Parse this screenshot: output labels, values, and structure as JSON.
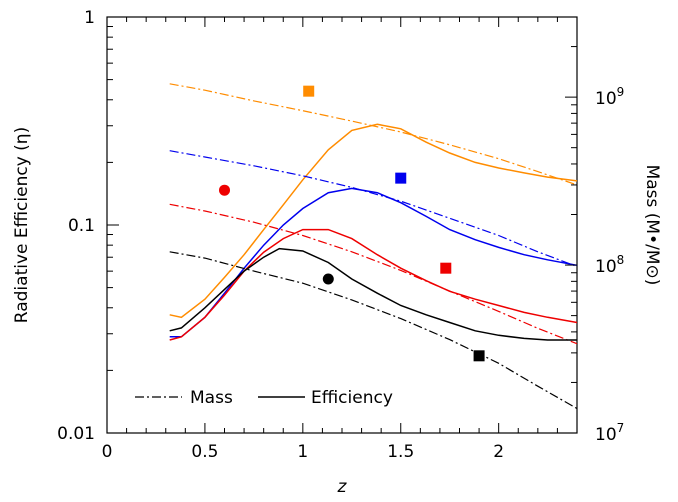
{
  "chart_data": {
    "type": "line",
    "xlabel": "z",
    "ylabel_left": "Radiative Efficiency (η)",
    "ylabel_right": "Mass (M•/M⊙)",
    "xlim": [
      0,
      2.4
    ],
    "ylim_left": [
      0.01,
      1
    ],
    "ylim_right": [
      10000000,
      3000000000
    ],
    "y_scale": "log",
    "x_ticks": [
      {
        "v": 0,
        "label": "0"
      },
      {
        "v": 0.5,
        "label": "0.5"
      },
      {
        "v": 1,
        "label": "1"
      },
      {
        "v": 1.5,
        "label": "1.5"
      },
      {
        "v": 2,
        "label": "2"
      }
    ],
    "y_left_ticks": [
      {
        "v": 0.01,
        "label": "0.01"
      },
      {
        "v": 0.1,
        "label": "0.1"
      },
      {
        "v": 1,
        "label": "1"
      }
    ],
    "y_right_ticks": [
      {
        "v": 10000000,
        "base": "10",
        "exp": "7"
      },
      {
        "v": 100000000,
        "base": "10",
        "exp": "8"
      },
      {
        "v": 1000000000,
        "base": "10",
        "exp": "9"
      }
    ],
    "legend": {
      "position": "bottom-left",
      "entries": [
        {
          "label": "Mass",
          "style": "dashdot"
        },
        {
          "label": "Efficiency",
          "style": "solid"
        }
      ]
    },
    "series": [
      {
        "color": "#ff8c00",
        "efficiency": [
          [
            0.32,
            0.037
          ],
          [
            0.38,
            0.036
          ],
          [
            0.5,
            0.044
          ],
          [
            0.6,
            0.056
          ],
          [
            0.7,
            0.072
          ],
          [
            0.8,
            0.095
          ],
          [
            0.9,
            0.125
          ],
          [
            1.0,
            0.165
          ],
          [
            1.13,
            0.23
          ],
          [
            1.25,
            0.285
          ],
          [
            1.38,
            0.305
          ],
          [
            1.5,
            0.29
          ],
          [
            1.63,
            0.25
          ],
          [
            1.75,
            0.222
          ],
          [
            1.88,
            0.2
          ],
          [
            2.0,
            0.188
          ],
          [
            2.13,
            0.178
          ],
          [
            2.25,
            0.17
          ],
          [
            2.4,
            0.163
          ]
        ],
        "mass": [
          [
            0.32,
            1200000000
          ],
          [
            0.5,
            1100000000
          ],
          [
            0.75,
            950000000
          ],
          [
            1.0,
            830000000
          ],
          [
            1.25,
            720000000
          ],
          [
            1.5,
            620000000
          ],
          [
            1.75,
            520000000
          ],
          [
            2.0,
            430000000
          ],
          [
            2.2,
            360000000
          ],
          [
            2.4,
            300000000
          ]
        ],
        "marker": {
          "shape": "square",
          "x": 1.03,
          "y_eff": 0.44
        }
      },
      {
        "color": "#0000ee",
        "efficiency": [
          [
            0.32,
            0.029
          ],
          [
            0.38,
            0.029
          ],
          [
            0.5,
            0.036
          ],
          [
            0.6,
            0.047
          ],
          [
            0.7,
            0.062
          ],
          [
            0.8,
            0.08
          ],
          [
            0.9,
            0.1
          ],
          [
            1.0,
            0.12
          ],
          [
            1.13,
            0.143
          ],
          [
            1.25,
            0.15
          ],
          [
            1.38,
            0.143
          ],
          [
            1.5,
            0.128
          ],
          [
            1.63,
            0.11
          ],
          [
            1.75,
            0.095
          ],
          [
            1.88,
            0.085
          ],
          [
            2.0,
            0.078
          ],
          [
            2.13,
            0.072
          ],
          [
            2.25,
            0.068
          ],
          [
            2.4,
            0.064
          ]
        ],
        "mass": [
          [
            0.32,
            480000000
          ],
          [
            0.5,
            440000000
          ],
          [
            0.75,
            390000000
          ],
          [
            1.0,
            340000000
          ],
          [
            1.25,
            290000000
          ],
          [
            1.5,
            240000000
          ],
          [
            1.75,
            190000000
          ],
          [
            2.0,
            150000000
          ],
          [
            2.2,
            120000000
          ],
          [
            2.4,
            98000000
          ]
        ],
        "marker": {
          "shape": "square",
          "x": 1.5,
          "y_eff": 0.168
        }
      },
      {
        "color": "#ee0000",
        "efficiency": [
          [
            0.32,
            0.028
          ],
          [
            0.38,
            0.029
          ],
          [
            0.5,
            0.036
          ],
          [
            0.6,
            0.046
          ],
          [
            0.7,
            0.06
          ],
          [
            0.8,
            0.074
          ],
          [
            0.9,
            0.086
          ],
          [
            1.0,
            0.095
          ],
          [
            1.13,
            0.095
          ],
          [
            1.25,
            0.086
          ],
          [
            1.38,
            0.072
          ],
          [
            1.5,
            0.062
          ],
          [
            1.63,
            0.054
          ],
          [
            1.75,
            0.048
          ],
          [
            1.88,
            0.044
          ],
          [
            2.0,
            0.041
          ],
          [
            2.13,
            0.038
          ],
          [
            2.25,
            0.036
          ],
          [
            2.4,
            0.034
          ]
        ],
        "mass": [
          [
            0.32,
            230000000
          ],
          [
            0.5,
            210000000
          ],
          [
            0.75,
            180000000
          ],
          [
            1.0,
            150000000
          ],
          [
            1.25,
            120000000
          ],
          [
            1.5,
            93000000
          ],
          [
            1.75,
            70000000
          ],
          [
            2.0,
            53000000
          ],
          [
            2.2,
            42000000
          ],
          [
            2.4,
            34000000
          ]
        ],
        "marker": {
          "shape": "circle",
          "x": 0.6,
          "y_eff": 0.147
        },
        "marker2": {
          "shape": "square",
          "x": 1.73,
          "y_eff": 0.062
        }
      },
      {
        "color": "#000000",
        "efficiency": [
          [
            0.32,
            0.031
          ],
          [
            0.38,
            0.032
          ],
          [
            0.5,
            0.04
          ],
          [
            0.6,
            0.049
          ],
          [
            0.7,
            0.06
          ],
          [
            0.8,
            0.07
          ],
          [
            0.88,
            0.077
          ],
          [
            1.0,
            0.075
          ],
          [
            1.13,
            0.066
          ],
          [
            1.25,
            0.055
          ],
          [
            1.38,
            0.047
          ],
          [
            1.5,
            0.041
          ],
          [
            1.63,
            0.037
          ],
          [
            1.75,
            0.034
          ],
          [
            1.88,
            0.031
          ],
          [
            2.0,
            0.0295
          ],
          [
            2.13,
            0.0285
          ],
          [
            2.25,
            0.028
          ],
          [
            2.4,
            0.028
          ]
        ],
        "mass": [
          [
            0.32,
            120000000
          ],
          [
            0.5,
            110000000
          ],
          [
            0.75,
            92000000
          ],
          [
            1.0,
            78000000
          ],
          [
            1.25,
            62000000
          ],
          [
            1.5,
            48000000
          ],
          [
            1.75,
            36000000
          ],
          [
            2.0,
            26000000
          ],
          [
            2.2,
            19000000
          ],
          [
            2.4,
            14000000
          ]
        ],
        "marker": {
          "shape": "circle",
          "x": 1.13,
          "y_eff": 0.055
        },
        "marker2": {
          "shape": "square",
          "x": 1.9,
          "y_eff": 0.0235
        }
      }
    ]
  }
}
